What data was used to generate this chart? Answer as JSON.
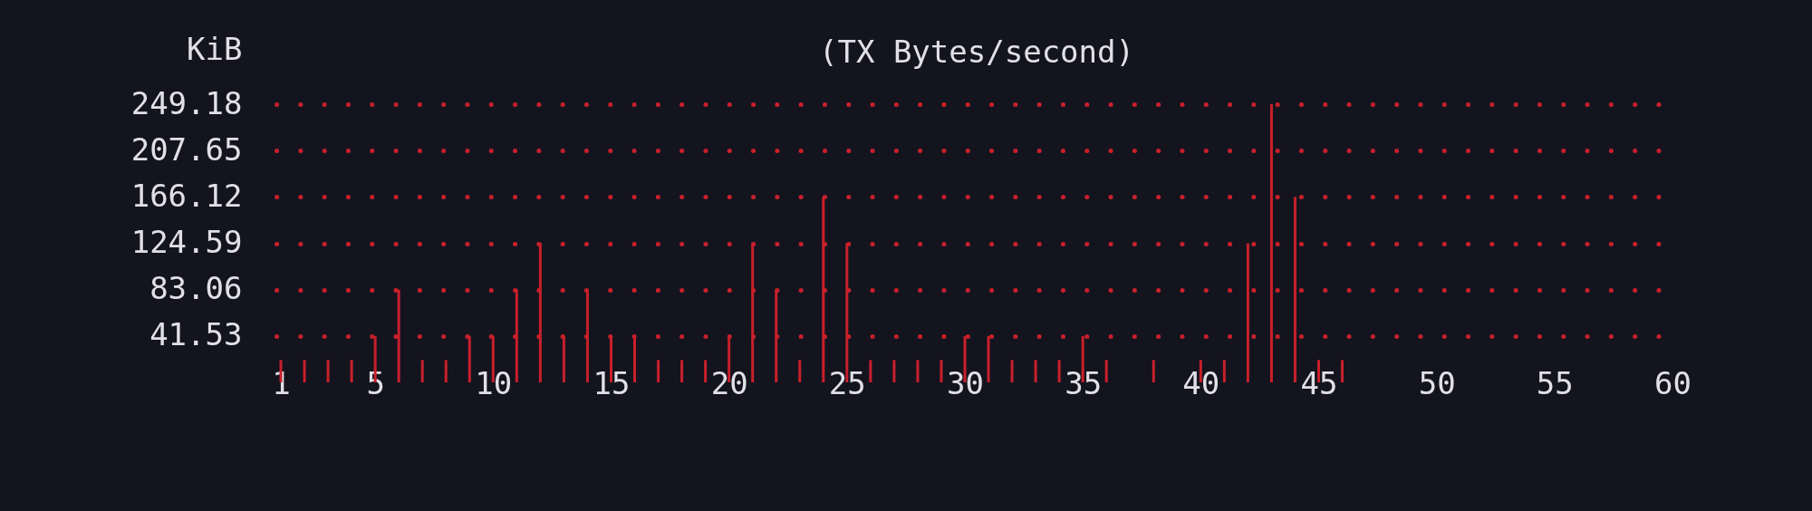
{
  "chart_data": {
    "type": "bar",
    "title": "(TX Bytes/second)",
    "ylabel": "KiB",
    "x": [
      1,
      2,
      3,
      4,
      5,
      6,
      7,
      8,
      9,
      10,
      11,
      12,
      13,
      14,
      15,
      16,
      17,
      18,
      19,
      20,
      21,
      22,
      23,
      24,
      25,
      26,
      27,
      28,
      29,
      30,
      31,
      32,
      33,
      34,
      35,
      36,
      37,
      38,
      39,
      40,
      41,
      42,
      43,
      44,
      45,
      46,
      47,
      48,
      49,
      50,
      51,
      52,
      53,
      54,
      55,
      56,
      57,
      58,
      59,
      60
    ],
    "values": [
      20,
      20,
      20,
      20,
      41.53,
      83.06,
      20,
      20,
      41.53,
      41.53,
      83.06,
      124.59,
      41.53,
      83.06,
      41.53,
      41.53,
      20,
      20,
      20,
      41.53,
      124.59,
      83.06,
      20,
      166.12,
      124.59,
      20,
      20,
      20,
      20,
      41.53,
      41.53,
      20,
      20,
      20,
      41.53,
      20,
      0,
      20,
      0,
      20,
      20,
      124.59,
      249.18,
      166.12,
      20,
      20,
      0,
      0,
      0,
      0,
      0,
      0,
      0,
      0,
      0,
      0,
      0,
      0,
      0,
      0
    ],
    "color": "#c8202a",
    "xlim": [
      1,
      60
    ],
    "xticks": [
      1,
      5,
      10,
      15,
      20,
      25,
      30,
      35,
      40,
      45,
      50,
      55,
      60
    ],
    "ylim": [
      0,
      249.18
    ],
    "yticks": [
      41.53,
      83.06,
      124.59,
      166.12,
      207.65,
      249.18
    ],
    "grid": "y"
  }
}
